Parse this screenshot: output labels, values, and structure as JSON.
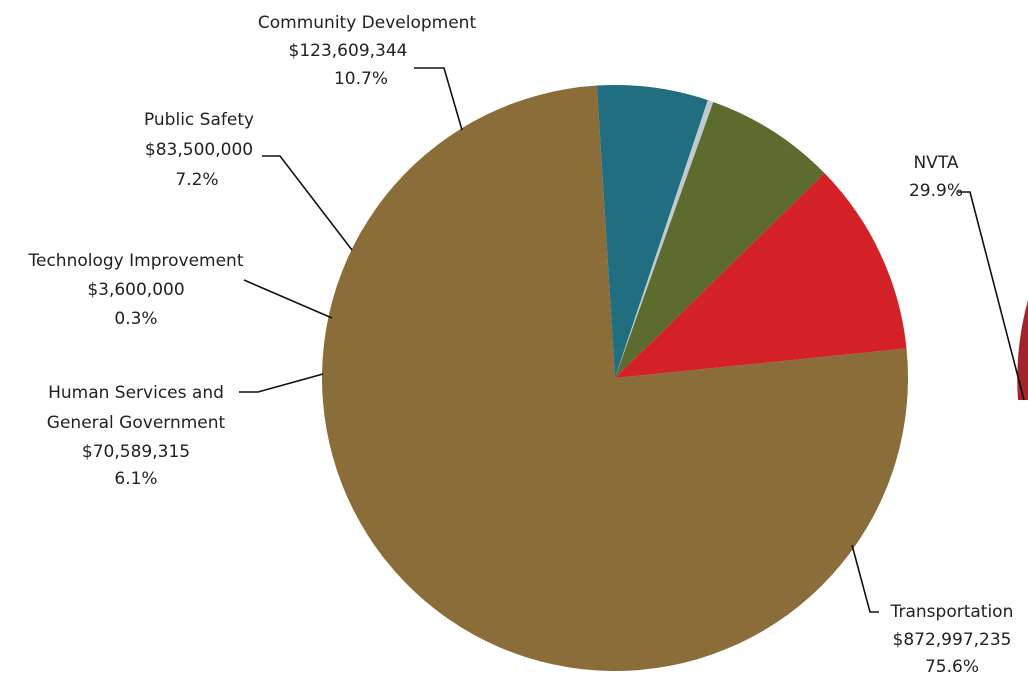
{
  "chart_data": {
    "type": "pie",
    "title": "",
    "slices": [
      {
        "label": "Transportation",
        "value_text": "$872,997,235",
        "value": 872997235,
        "percent": 75.6,
        "percent_text": "75.6%",
        "color": "#8B6D3A"
      },
      {
        "label": "Human Services and General Government",
        "label_lines": [
          "Human Services and",
          "General Government"
        ],
        "value_text": "$70,589,315",
        "value": 70589315,
        "percent": 6.1,
        "percent_text": "6.1%",
        "color": "#216E80"
      },
      {
        "label": "Technology Improvement",
        "value_text": "$3,600,000",
        "value": 3600000,
        "percent": 0.3,
        "percent_text": "0.3%",
        "color": "#BFCBD0"
      },
      {
        "label": "Public Safety",
        "value_text": "$83,500,000",
        "value": 83500000,
        "percent": 7.2,
        "percent_text": "7.2%",
        "color": "#5E6B2E"
      },
      {
        "label": "Community Development",
        "value_text": "$123,609,344",
        "value": 123609344,
        "percent": 10.7,
        "percent_text": "10.7%",
        "color": "#D42027"
      }
    ],
    "secondary": {
      "label": "NVTA",
      "percent": 29.9,
      "percent_text": "29.9%",
      "color": "#A3252B"
    }
  }
}
